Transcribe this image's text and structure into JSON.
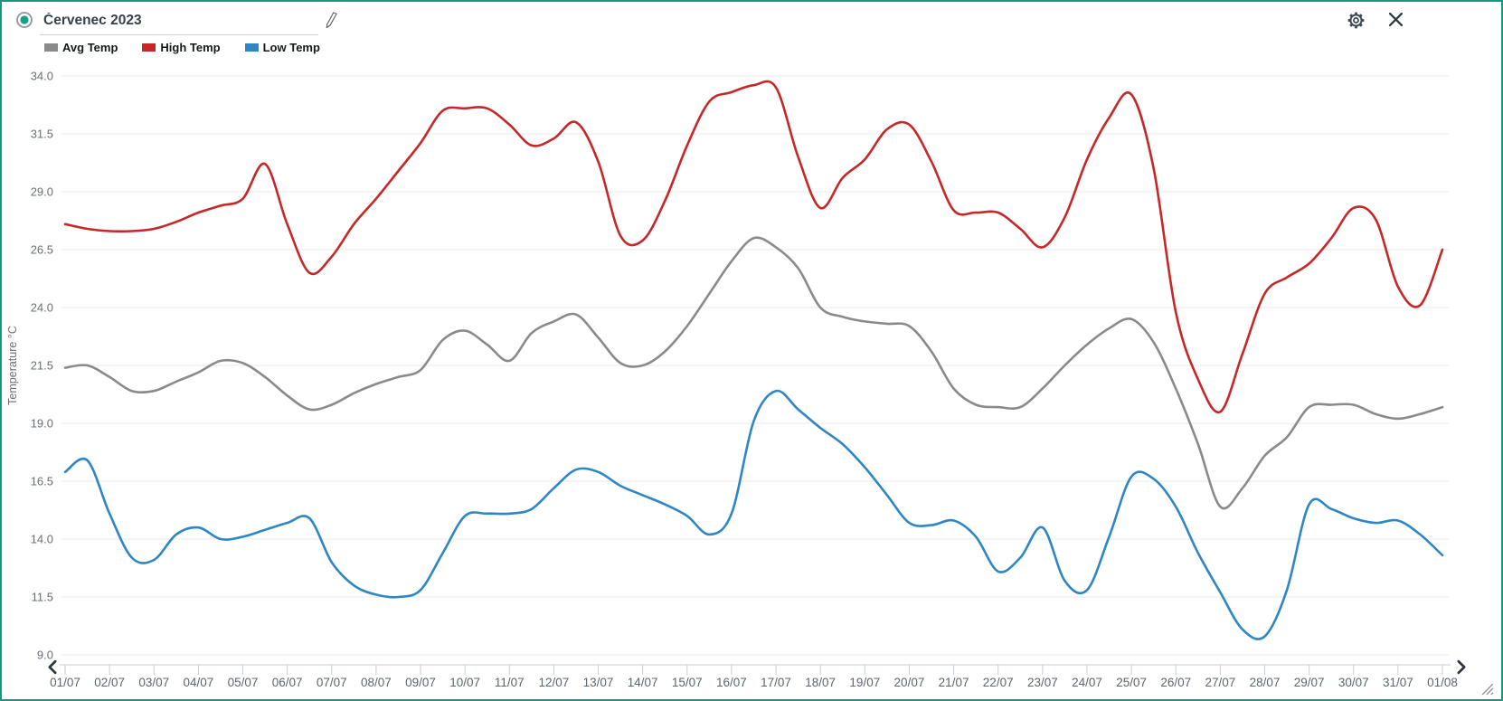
{
  "window": {
    "border_color": "#14997f",
    "background": "#ffffff"
  },
  "header": {
    "title_value": "Červenec 2023",
    "icons": [
      "radio-circle-icon",
      "pencil-icon",
      "gear-icon",
      "close-icon"
    ]
  },
  "legend": [
    {
      "label": "Avg Temp",
      "color": "#8a8a8a"
    },
    {
      "label": "High Temp",
      "color": "#c62828"
    },
    {
      "label": "Low Temp",
      "color": "#2e86c4"
    }
  ],
  "chart_data": {
    "type": "line",
    "title": "Červenec 2023",
    "ylabel": "Temperature °C",
    "ylim": [
      9.0,
      34.0
    ],
    "yticks": [
      34.0,
      31.5,
      29.0,
      26.5,
      24.0,
      21.5,
      19.0,
      16.5,
      14.0,
      11.5,
      9.0
    ],
    "grid": true,
    "legend_position": "top-left",
    "x_tick_labels": [
      "01/07",
      "02/07",
      "03/07",
      "04/07",
      "05/07",
      "06/07",
      "07/07",
      "08/07",
      "09/07",
      "10/07",
      "11/07",
      "12/07",
      "13/07",
      "14/07",
      "15/07",
      "16/07",
      "17/07",
      "18/07",
      "19/07",
      "20/07",
      "21/07",
      "22/07",
      "23/07",
      "24/07",
      "25/07",
      "26/07",
      "27/07",
      "28/07",
      "29/07",
      "30/07",
      "31/07",
      "01/08"
    ],
    "x_start_day": 1,
    "x_step_days": 0.5,
    "series": [
      {
        "name": "Avg Temp",
        "color": "#8a8a8a",
        "values": [
          21.4,
          21.5,
          21.0,
          20.4,
          20.4,
          20.8,
          21.2,
          21.7,
          21.6,
          21.0,
          20.2,
          19.6,
          19.8,
          20.3,
          20.7,
          21.0,
          21.3,
          22.6,
          23.0,
          22.4,
          21.7,
          22.9,
          23.4,
          23.7,
          22.7,
          21.6,
          21.5,
          22.1,
          23.2,
          24.6,
          26.0,
          27.0,
          26.6,
          25.7,
          24.0,
          23.6,
          23.4,
          23.3,
          23.2,
          22.1,
          20.5,
          19.8,
          19.7,
          19.7,
          20.5,
          21.5,
          22.4,
          23.1,
          23.5,
          22.5,
          20.5,
          18.1,
          15.4,
          16.2,
          17.6,
          18.4,
          19.7,
          19.8,
          19.8,
          19.4,
          19.2,
          19.4,
          19.7
        ]
      },
      {
        "name": "High Temp",
        "color": "#c62828",
        "values": [
          27.6,
          27.4,
          27.3,
          27.3,
          27.4,
          27.7,
          28.1,
          28.4,
          28.7,
          30.2,
          27.6,
          25.5,
          26.2,
          27.6,
          28.7,
          29.9,
          31.1,
          32.5,
          32.6,
          32.6,
          31.9,
          31.0,
          31.3,
          32.0,
          30.3,
          27.1,
          26.9,
          28.6,
          31.0,
          32.9,
          33.3,
          33.6,
          33.5,
          30.5,
          28.3,
          29.6,
          30.4,
          31.7,
          31.9,
          30.3,
          28.2,
          28.1,
          28.1,
          27.4,
          26.6,
          27.9,
          30.4,
          32.2,
          33.2,
          30.0,
          23.8,
          20.9,
          19.5,
          22.0,
          24.6,
          25.3,
          25.9,
          27.0,
          28.3,
          27.8,
          24.9,
          24.1,
          26.5
        ]
      },
      {
        "name": "Low Temp",
        "color": "#2e86c4",
        "values": [
          16.9,
          17.4,
          15.1,
          13.2,
          13.1,
          14.2,
          14.5,
          14.0,
          14.1,
          14.4,
          14.7,
          14.9,
          13.0,
          12.0,
          11.6,
          11.5,
          11.8,
          13.4,
          15.0,
          15.1,
          15.1,
          15.3,
          16.2,
          17.0,
          16.9,
          16.3,
          15.9,
          15.5,
          15.0,
          14.2,
          15.1,
          19.1,
          20.4,
          19.6,
          18.8,
          18.1,
          17.1,
          15.9,
          14.7,
          14.6,
          14.8,
          14.1,
          12.6,
          13.2,
          14.5,
          12.2,
          11.8,
          14.1,
          16.7,
          16.6,
          15.4,
          13.4,
          11.7,
          10.1,
          9.8,
          11.8,
          15.5,
          15.3,
          14.9,
          14.7,
          14.8,
          14.2,
          13.3
        ]
      }
    ]
  },
  "scrollbar": {
    "prev_icon": "chevron-left-icon",
    "next_icon": "chevron-right-icon",
    "resize_icon": "resize-handle-icon"
  }
}
